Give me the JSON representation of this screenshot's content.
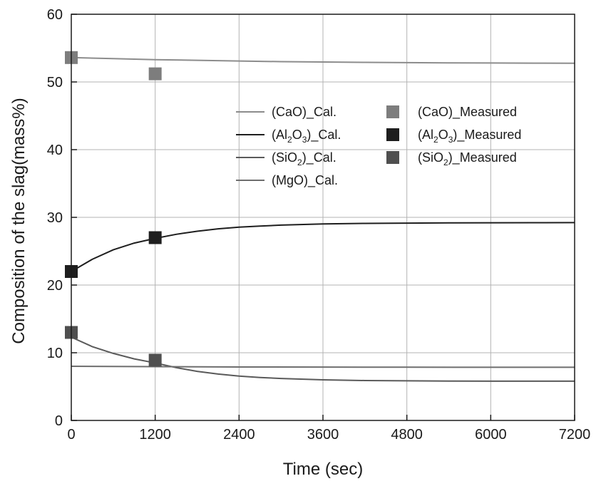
{
  "chart_data": {
    "type": "line",
    "xlabel": "Time (sec)",
    "ylabel": "Composition of the slag(mass%)",
    "xlim": [
      0,
      7200
    ],
    "ylim": [
      0,
      60
    ],
    "xticks": [
      0,
      1200,
      2400,
      3600,
      4800,
      6000,
      7200
    ],
    "yticks": [
      0,
      10,
      20,
      30,
      40,
      50,
      60
    ],
    "grid": true,
    "legend_position": "upper-middle",
    "calculated_series": [
      {
        "id": "cao-cal",
        "legend_main": "(CaO)_Cal.",
        "color": "#8c8c8c",
        "x": [
          0,
          600,
          1200,
          1800,
          2400,
          3000,
          3600,
          4200,
          4800,
          5400,
          6000,
          6600,
          7200
        ],
        "y": [
          53.6,
          53.45,
          53.3,
          53.2,
          53.1,
          53.0,
          52.95,
          52.9,
          52.85,
          52.82,
          52.8,
          52.78,
          52.76
        ]
      },
      {
        "id": "al2o3-cal",
        "legend_pre": "(Al",
        "legend_sub1": "2",
        "legend_mid": "O",
        "legend_sub2": "3",
        "legend_post": ")_Cal.",
        "color": "#1e1e1e",
        "x": [
          0,
          300,
          600,
          900,
          1200,
          1500,
          1800,
          2100,
          2400,
          2700,
          3000,
          3600,
          4200,
          4800,
          5400,
          6000,
          6600,
          7200
        ],
        "y": [
          22.0,
          23.8,
          25.2,
          26.2,
          26.9,
          27.5,
          27.95,
          28.3,
          28.55,
          28.72,
          28.85,
          29.02,
          29.1,
          29.15,
          29.18,
          29.2,
          29.21,
          29.22
        ]
      },
      {
        "id": "sio2-cal",
        "legend_pre": "(SiO",
        "legend_sub1": "2",
        "legend_post": ")_Cal.",
        "color": "#5a5a5a",
        "x": [
          0,
          300,
          600,
          900,
          1200,
          1500,
          1800,
          2100,
          2400,
          2700,
          3000,
          3600,
          4200,
          4800,
          5400,
          6000,
          6600,
          7200
        ],
        "y": [
          12.3,
          10.9,
          9.9,
          9.1,
          8.5,
          7.8,
          7.25,
          6.85,
          6.55,
          6.35,
          6.2,
          6.0,
          5.9,
          5.85,
          5.82,
          5.8,
          5.8,
          5.8
        ]
      },
      {
        "id": "mgo-cal",
        "legend_main": "(MgO)_Cal.",
        "color": "#6e6e6e",
        "x": [
          0,
          1200,
          2400,
          3600,
          4800,
          6000,
          7200
        ],
        "y": [
          8.0,
          7.95,
          7.9,
          7.88,
          7.86,
          7.85,
          7.85
        ]
      }
    ],
    "measured_series": [
      {
        "id": "cao-measured",
        "legend_main": "(CaO)_Measured",
        "color": "#7d7d7d",
        "x": [
          0,
          1200
        ],
        "y": [
          53.6,
          51.2
        ]
      },
      {
        "id": "al2o3-measured",
        "legend_pre": "(Al",
        "legend_sub1": "2",
        "legend_mid": "O",
        "legend_sub2": "3",
        "legend_post": ")_Measured",
        "color": "#1e1e1e",
        "x": [
          0,
          1200
        ],
        "y": [
          22.0,
          27.0
        ]
      },
      {
        "id": "sio2-measured",
        "legend_pre": "(SiO",
        "legend_sub1": "2",
        "legend_post": ")_Measured",
        "color": "#4f4f4f",
        "x": [
          0,
          1200
        ],
        "y": [
          13.0,
          8.9
        ]
      }
    ]
  }
}
